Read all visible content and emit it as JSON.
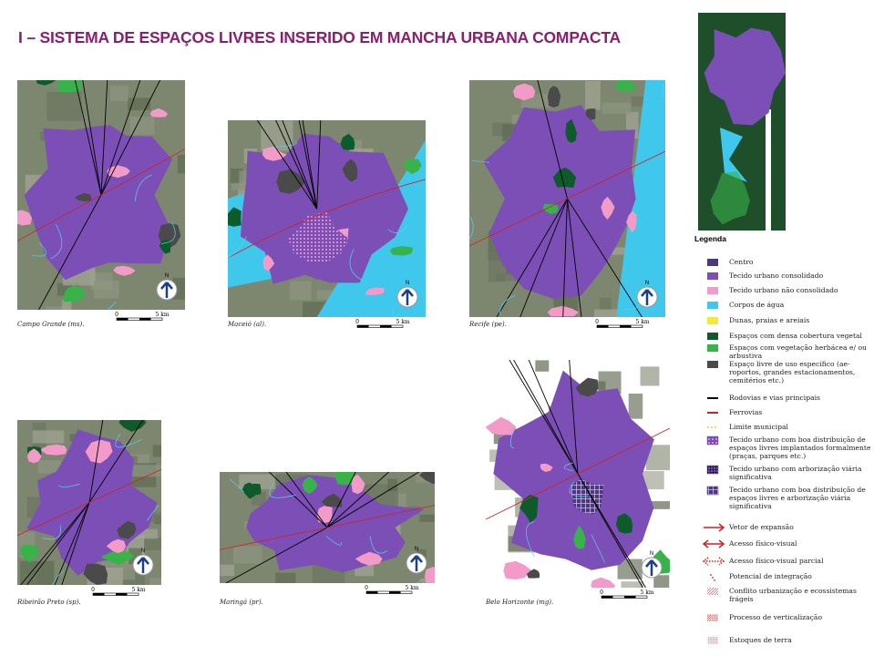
{
  "header": {
    "title": "I – SISTEMA DE ESPAÇOS LIVRES INSERIDO EM MANCHA URBANA COMPACTA"
  },
  "maps": [
    {
      "caption": "Campo Grande (ms).",
      "scale": {
        "start": "0",
        "end": "5 km"
      },
      "north": "N"
    },
    {
      "caption": "Maceió (al).",
      "scale": {
        "start": "0",
        "end": "5 km"
      },
      "north": "N"
    },
    {
      "caption": "Recife (pe).",
      "scale": {
        "start": "0",
        "end": "5 km"
      },
      "north": "N"
    },
    {
      "caption": "Ribeirão Preto (sp).",
      "scale": {
        "start": "0",
        "end": "5 km"
      },
      "north": "N"
    },
    {
      "caption": "Maringá (pr).",
      "scale": {
        "start": "0",
        "end": "5 km"
      },
      "north": "N"
    },
    {
      "caption": "Belo Horizonte (mg).",
      "scale": {
        "start": "0",
        "end": "5 km"
      },
      "north": "N"
    }
  ],
  "legend": {
    "title": "Legenda",
    "items": [
      {
        "label": "Centro",
        "kind": "fill",
        "color": "#4b3a7a"
      },
      {
        "label": "Tecido urbano consolidado",
        "kind": "fill",
        "color": "#7b4fb5"
      },
      {
        "label": "Tecido urbano não consolidado",
        "kind": "fill",
        "color": "#f29bc8"
      },
      {
        "label": "Corpos de água",
        "kind": "fill",
        "color": "#3fc8ec"
      },
      {
        "label": "Dunas, praias e areiais",
        "kind": "fill",
        "color": "#f2ea3a"
      },
      {
        "label": "Espaços com densa cobertura vegetal",
        "kind": "fill",
        "color": "#0d5a2a"
      },
      {
        "label": "Espaços com vegetação herbácea e/ ou arbustiva",
        "kind": "fill",
        "color": "#37b34a"
      },
      {
        "label": "Espaço livre de uso específico (ae-roportos, grandes estacionamentos, cemitérios etc.)",
        "kind": "fill",
        "color": "#4a4a4a"
      },
      {
        "label": "Rodovias e vias principais",
        "kind": "line",
        "color": "#000000"
      },
      {
        "label": "Ferrovias",
        "kind": "line",
        "color": "#d32020"
      },
      {
        "label": "Limite municipal",
        "kind": "dash",
        "color": "#d8d830"
      },
      {
        "label": "Tecido urbano com boa distribuição de espaços livres implantados formalmente (praças, parques etc.)",
        "kind": "dots",
        "color": "#7b4fb5"
      },
      {
        "label": "Tecido urbano com arborização viária significativa",
        "kind": "grid",
        "color": "#4b3a7a"
      },
      {
        "label": "Tecido urbano com boa distribuição de espaços livres e arborização viária significativa",
        "kind": "cross",
        "color": "#4b3a7a"
      },
      {
        "label": "Vetor de expansão",
        "kind": "arrow",
        "color": "#d32020"
      },
      {
        "label": "Acesso físico-visual",
        "kind": "arrow2",
        "color": "#d32020"
      },
      {
        "label": "Acesso físico-visual parcial",
        "kind": "arrow2dot",
        "color": "#d32020"
      },
      {
        "label": "Potencial de integração",
        "kind": "points",
        "color": "#d32020"
      },
      {
        "label": "Conflito urbanização e ecossistemas frágeis",
        "kind": "hatch",
        "color": "#e07070"
      },
      {
        "label": "Processo de verticalização",
        "kind": "hatch",
        "color": "#d04040"
      },
      {
        "label": "Estoques de terra",
        "kind": "hatch",
        "color": "#b81818"
      }
    ]
  }
}
